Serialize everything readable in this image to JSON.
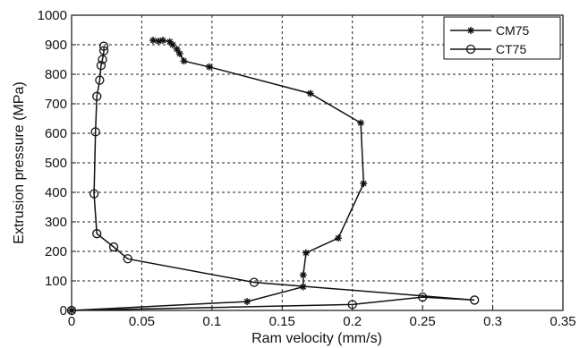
{
  "chart_data": {
    "type": "line",
    "xlabel": "Ram velocity (mm/s)",
    "ylabel": "Extrusion pressure (MPa)",
    "xlim": [
      0,
      0.35
    ],
    "ylim": [
      0,
      1000
    ],
    "xticks": [
      0,
      0.05,
      0.1,
      0.15,
      0.2,
      0.25,
      0.3,
      0.35
    ],
    "xtick_labels": [
      "0",
      "0.05",
      "0.1",
      "0.15",
      "0.2",
      "0.25",
      "0.3",
      "0.35"
    ],
    "yticks": [
      0,
      100,
      200,
      300,
      400,
      500,
      600,
      700,
      800,
      900,
      1000
    ],
    "ytick_labels": [
      "0",
      "100",
      "200",
      "300",
      "400",
      "500",
      "600",
      "700",
      "800",
      "900",
      "1000"
    ],
    "grid": true,
    "legend_position": "top-right",
    "series": [
      {
        "name": "CM75",
        "marker": "asterisk",
        "color": "#111111",
        "x": [
          0,
          0.125,
          0.165,
          0.165,
          0.167,
          0.19,
          0.208,
          0.206,
          0.17,
          0.098,
          0.08,
          0.077,
          0.075,
          0.072,
          0.07,
          0.065,
          0.062,
          0.058
        ],
        "y": [
          0,
          30,
          80,
          120,
          195,
          245,
          430,
          635,
          735,
          825,
          845,
          870,
          885,
          900,
          910,
          915,
          912,
          915
        ]
      },
      {
        "name": "CT75",
        "marker": "circle",
        "color": "#111111",
        "x": [
          0,
          0.2,
          0.25,
          0.287,
          0.13,
          0.04,
          0.03,
          0.018,
          0.016,
          0.017,
          0.018,
          0.02,
          0.021,
          0.022,
          0.023,
          0.023
        ],
        "y": [
          0,
          20,
          45,
          35,
          95,
          175,
          215,
          260,
          395,
          605,
          725,
          780,
          830,
          850,
          880,
          895
        ]
      }
    ]
  }
}
